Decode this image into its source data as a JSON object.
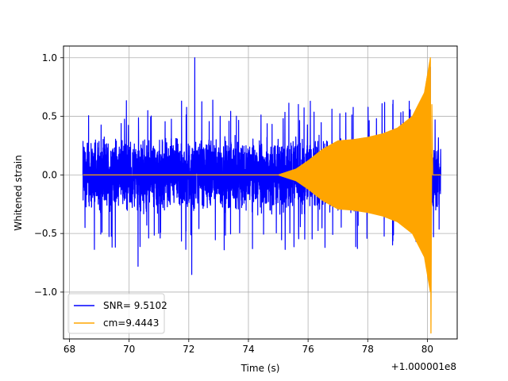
{
  "chart_data": {
    "type": "line",
    "title": "",
    "xlabel": "Time (s)",
    "ylabel": "Whitened strain",
    "x_offset_label": "+1.000001e8",
    "xlim": [
      67.8,
      81.0
    ],
    "ylim": [
      -1.4,
      1.1
    ],
    "xticks": [
      68,
      70,
      72,
      74,
      76,
      78,
      80
    ],
    "xtick_labels": [
      "68",
      "70",
      "72",
      "74",
      "76",
      "78",
      "80"
    ],
    "yticks": [
      1.0,
      0.5,
      0.0,
      -0.5,
      -1.0
    ],
    "ytick_labels": [
      "1.0",
      "0.5",
      "0.0",
      "−0.5",
      "−1.0"
    ],
    "grid": true,
    "legend_position": "lower-left",
    "series": [
      {
        "name": "SNR= 9.5102",
        "color": "#0000ff",
        "description_range": [
          68.45,
          80.45
        ],
        "amplitude_typical": 0.35,
        "notable_extrema": [
          {
            "x": 72.2,
            "y": 1.0
          },
          {
            "x": 72.1,
            "y": -0.85
          },
          {
            "x": 70.3,
            "y": -0.78
          },
          {
            "x": 80.1,
            "y": 0.92
          }
        ]
      },
      {
        "name": "cm=9.4443",
        "color": "#ffa500",
        "description_range": [
          68.45,
          80.45
        ],
        "envelope": [
          {
            "x": 68.45,
            "y": 0.0
          },
          {
            "x": 75.0,
            "y": 0.0
          },
          {
            "x": 75.6,
            "y": 0.05
          },
          {
            "x": 76.0,
            "y": 0.12
          },
          {
            "x": 76.5,
            "y": 0.22
          },
          {
            "x": 77.0,
            "y": 0.29
          },
          {
            "x": 77.5,
            "y": 0.3
          },
          {
            "x": 78.0,
            "y": 0.32
          },
          {
            "x": 78.5,
            "y": 0.35
          },
          {
            "x": 79.0,
            "y": 0.4
          },
          {
            "x": 79.5,
            "y": 0.5
          },
          {
            "x": 79.9,
            "y": 0.7
          },
          {
            "x": 80.1,
            "y": 1.0
          }
        ],
        "min_value": {
          "x": 80.1,
          "y": -1.35
        }
      }
    ]
  }
}
